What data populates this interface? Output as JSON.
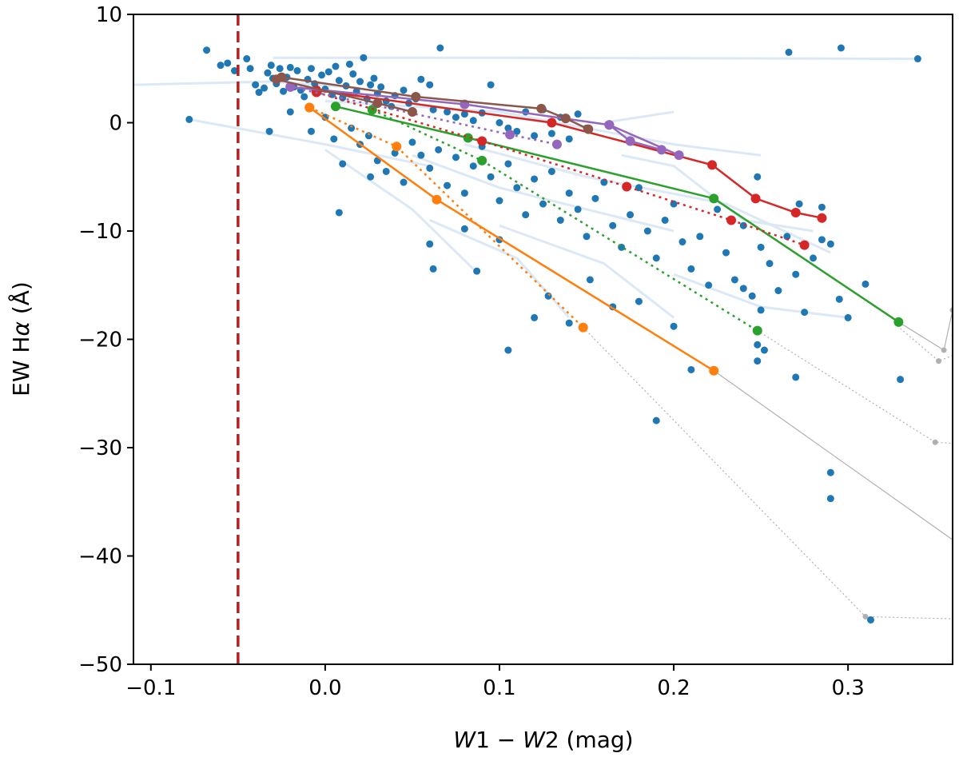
{
  "chart_data": {
    "type": "scatter",
    "xlabel_italic_a": "W",
    "xlabel_part_1": "1 − ",
    "xlabel_italic_b": "W",
    "xlabel_part_2": "2 (mag)",
    "ylabel_part_1": "EW H",
    "ylabel_greek": "α",
    "ylabel_part_2": " (Å)",
    "xlim": [
      -0.11,
      0.36
    ],
    "ylim": [
      -50,
      10
    ],
    "x_ticks": [
      -0.1,
      0.0,
      0.1,
      0.2,
      0.3
    ],
    "x_tick_labels": [
      "−0.1",
      "0.0",
      "0.1",
      "0.2",
      "0.3"
    ],
    "y_ticks": [
      10,
      0,
      -10,
      -20,
      -30,
      -40,
      -50
    ],
    "y_tick_labels": [
      "10",
      "0",
      "−10",
      "−20",
      "−30",
      "−40",
      "−50"
    ],
    "grid": false,
    "reference_line": {
      "x": -0.05,
      "color": "#b22222",
      "style": "dashed"
    },
    "colors": {
      "scatter": "#1f77b4",
      "faint_tracks": "#dce9f5",
      "gray": "#b0b0b0",
      "orange": "#ff7f0e",
      "green": "#2ca02c",
      "red": "#d62728",
      "purple": "#9467bd",
      "brown": "#8c564b"
    },
    "scatter_points": [
      [
        -0.068,
        6.7
      ],
      [
        -0.06,
        5.3
      ],
      [
        -0.056,
        5.5
      ],
      [
        -0.052,
        4.8
      ],
      [
        -0.045,
        5.9
      ],
      [
        -0.043,
        5.0
      ],
      [
        -0.04,
        3.5
      ],
      [
        -0.038,
        2.8
      ],
      [
        -0.035,
        3.2
      ],
      [
        -0.033,
        4.6
      ],
      [
        -0.031,
        5.3
      ],
      [
        -0.03,
        4.1
      ],
      [
        -0.028,
        3.6
      ],
      [
        -0.026,
        5.0
      ],
      [
        -0.024,
        2.9
      ],
      [
        -0.022,
        4.2
      ],
      [
        -0.02,
        5.1
      ],
      [
        -0.018,
        3.3
      ],
      [
        -0.016,
        4.8
      ],
      [
        -0.014,
        3.0
      ],
      [
        -0.012,
        2.4
      ],
      [
        -0.01,
        4.0
      ],
      [
        -0.008,
        5.0
      ],
      [
        -0.006,
        3.6
      ],
      [
        -0.004,
        2.8
      ],
      [
        -0.002,
        4.4
      ],
      [
        0.0,
        3.1
      ],
      [
        0.002,
        4.7
      ],
      [
        0.004,
        2.6
      ],
      [
        0.006,
        5.2
      ],
      [
        0.008,
        3.9
      ],
      [
        0.01,
        2.3
      ],
      [
        0.012,
        3.4
      ],
      [
        0.014,
        5.4
      ],
      [
        0.016,
        4.5
      ],
      [
        0.018,
        2.9
      ],
      [
        0.02,
        3.8
      ],
      [
        0.022,
        6.0
      ],
      [
        0.024,
        2.2
      ],
      [
        0.026,
        3.5
      ],
      [
        0.028,
        4.1
      ],
      [
        0.03,
        2.7
      ],
      [
        0.032,
        3.3
      ],
      [
        0.035,
        2.0
      ],
      [
        0.038,
        1.5
      ],
      [
        0.04,
        2.5
      ],
      [
        0.045,
        3.0
      ],
      [
        0.048,
        1.8
      ],
      [
        0.052,
        2.2
      ],
      [
        0.055,
        4.0
      ],
      [
        0.06,
        3.5
      ],
      [
        0.062,
        1.2
      ],
      [
        0.066,
        6.9
      ],
      [
        0.07,
        1.0
      ],
      [
        0.075,
        0.5
      ],
      [
        0.08,
        0.8
      ],
      [
        0.085,
        0.2
      ],
      [
        0.09,
        0.9
      ],
      [
        0.095,
        3.5
      ],
      [
        0.1,
        0.0
      ],
      [
        0.105,
        -0.5
      ],
      [
        0.11,
        -0.8
      ],
      [
        0.115,
        1.0
      ],
      [
        0.12,
        -1.2
      ],
      [
        0.125,
        1.2
      ],
      [
        0.13,
        -1.0
      ],
      [
        0.135,
        0.5
      ],
      [
        0.14,
        -1.5
      ],
      [
        0.145,
        0.8
      ],
      [
        0.15,
        -0.5
      ],
      [
        -0.078,
        0.3
      ],
      [
        -0.032,
        -0.8
      ],
      [
        -0.02,
        1.0
      ],
      [
        -0.008,
        -0.8
      ],
      [
        0.0,
        0.5
      ],
      [
        0.005,
        -1.5
      ],
      [
        0.01,
        -3.8
      ],
      [
        0.015,
        -0.5
      ],
      [
        0.02,
        -2.0
      ],
      [
        0.025,
        -1.2
      ],
      [
        0.03,
        -3.5
      ],
      [
        0.035,
        -4.5
      ],
      [
        0.04,
        -2.8
      ],
      [
        0.045,
        -5.5
      ],
      [
        0.05,
        -1.8
      ],
      [
        0.055,
        -3.0
      ],
      [
        0.06,
        -4.2
      ],
      [
        0.065,
        -2.5
      ],
      [
        0.07,
        -5.8
      ],
      [
        0.075,
        -3.2
      ],
      [
        0.08,
        -6.5
      ],
      [
        0.085,
        -4.0
      ],
      [
        0.09,
        -2.2
      ],
      [
        0.095,
        -5.0
      ],
      [
        0.1,
        -7.2
      ],
      [
        0.105,
        -3.8
      ],
      [
        0.11,
        -6.0
      ],
      [
        0.115,
        -8.5
      ],
      [
        0.12,
        -5.2
      ],
      [
        0.125,
        -7.5
      ],
      [
        0.13,
        -4.5
      ],
      [
        0.135,
        -9.0
      ],
      [
        0.14,
        -6.5
      ],
      [
        0.145,
        -8.0
      ],
      [
        0.15,
        -10.5
      ],
      [
        0.155,
        -7.0
      ],
      [
        0.16,
        -5.5
      ],
      [
        0.165,
        -9.5
      ],
      [
        0.17,
        -11.5
      ],
      [
        0.175,
        -8.5
      ],
      [
        0.18,
        -6.0
      ],
      [
        0.185,
        -10.0
      ],
      [
        0.19,
        -12.5
      ],
      [
        0.195,
        -9.0
      ],
      [
        0.2,
        -7.5
      ],
      [
        0.205,
        -11.0
      ],
      [
        0.21,
        -13.5
      ],
      [
        0.215,
        -10.5
      ],
      [
        0.22,
        -15.0
      ],
      [
        0.225,
        -8.0
      ],
      [
        0.23,
        -12.0
      ],
      [
        0.235,
        -14.5
      ],
      [
        0.24,
        -9.5
      ],
      [
        0.245,
        -16.0
      ],
      [
        0.25,
        -11.5
      ],
      [
        0.255,
        -13.0
      ],
      [
        0.26,
        -15.5
      ],
      [
        0.265,
        -10.5
      ],
      [
        0.27,
        -14.0
      ],
      [
        0.275,
        -17.5
      ],
      [
        0.28,
        -12.5
      ],
      [
        0.285,
        -10.8
      ],
      [
        0.29,
        -11.2
      ],
      [
        0.295,
        -16.3
      ],
      [
        0.3,
        -18.0
      ],
      [
        0.008,
        -8.3
      ],
      [
        0.026,
        -5.0
      ],
      [
        0.06,
        -11.2
      ],
      [
        0.062,
        -13.5
      ],
      [
        0.08,
        -9.8
      ],
      [
        0.087,
        -13.7
      ],
      [
        0.1,
        -10.8
      ],
      [
        0.105,
        -21.0
      ],
      [
        0.12,
        -18.0
      ],
      [
        0.128,
        -16.0
      ],
      [
        0.14,
        -18.5
      ],
      [
        0.152,
        -14.5
      ],
      [
        0.165,
        -17.0
      ],
      [
        0.18,
        -16.5
      ],
      [
        0.19,
        -27.5
      ],
      [
        0.2,
        -18.8
      ],
      [
        0.21,
        -22.8
      ],
      [
        0.24,
        -15.3
      ],
      [
        0.248,
        -20.5
      ],
      [
        0.252,
        -21.0
      ],
      [
        0.248,
        -22.0
      ],
      [
        0.25,
        -17.3
      ],
      [
        0.27,
        -23.5
      ],
      [
        0.29,
        -32.3
      ],
      [
        0.29,
        -34.7
      ],
      [
        0.313,
        -45.9
      ],
      [
        0.33,
        -23.7
      ],
      [
        0.31,
        -14.9
      ],
      [
        0.296,
        6.9
      ],
      [
        0.266,
        6.5
      ],
      [
        0.34,
        5.9
      ],
      [
        0.285,
        -7.8
      ],
      [
        0.272,
        -7.5
      ],
      [
        0.248,
        -5.0
      ]
    ],
    "faint_tracks": [
      [
        [
          -0.11,
          3.5
        ],
        [
          -0.03,
          3.8
        ],
        [
          0.02,
          3.2
        ]
      ],
      [
        [
          -0.078,
          0.3
        ],
        [
          0.0,
          -2.0
        ],
        [
          0.06,
          -4.0
        ]
      ],
      [
        [
          -0.03,
          6.0
        ],
        [
          0.1,
          6.0
        ],
        [
          0.34,
          5.9
        ]
      ],
      [
        [
          0.0,
          2.0
        ],
        [
          0.1,
          1.0
        ],
        [
          0.2,
          -2.0
        ],
        [
          0.25,
          -3.0
        ]
      ],
      [
        [
          0.05,
          -3.0
        ],
        [
          0.1,
          -6.0
        ],
        [
          0.15,
          -8.0
        ],
        [
          0.2,
          -10.0
        ]
      ],
      [
        [
          0.06,
          -9.0
        ],
        [
          0.11,
          -12.5
        ],
        [
          0.14,
          -18.0
        ]
      ],
      [
        [
          0.17,
          -3.0
        ],
        [
          0.2,
          -4.0
        ],
        [
          0.24,
          -9.0
        ],
        [
          0.28,
          -10.0
        ]
      ],
      [
        [
          0.08,
          -2.0
        ],
        [
          0.15,
          -5.0
        ],
        [
          0.23,
          -7.5
        ],
        [
          0.29,
          -12.0
        ]
      ],
      [
        [
          0.1,
          -9.5
        ],
        [
          0.16,
          -13.0
        ],
        [
          0.2,
          -18.0
        ]
      ],
      [
        [
          0.2,
          -14.0
        ],
        [
          0.25,
          -17.0
        ],
        [
          0.3,
          -18.0
        ]
      ],
      [
        [
          0.0,
          -2.5
        ],
        [
          0.05,
          -8.0
        ],
        [
          0.085,
          -13.5
        ]
      ],
      [
        [
          0.16,
          0.0
        ],
        [
          0.2,
          1.0
        ]
      ]
    ],
    "gray_tracks": [
      {
        "style": "solid",
        "points": [
          [
            0.223,
            -22.9
          ],
          [
            0.36,
            -38.5
          ]
        ]
      },
      {
        "style": "dotted",
        "points": [
          [
            0.148,
            -18.9
          ],
          [
            0.31,
            -45.6
          ],
          [
            0.36,
            -45.8
          ]
        ]
      },
      {
        "style": "dotted",
        "points": [
          [
            0.248,
            -19.2
          ],
          [
            0.35,
            -29.5
          ],
          [
            0.36,
            -29.6
          ]
        ]
      },
      {
        "style": "solid",
        "points": [
          [
            0.329,
            -18.4
          ],
          [
            0.355,
            -21.0
          ],
          [
            0.36,
            -17.3
          ]
        ]
      },
      {
        "style": "dotted",
        "points": [
          [
            0.33,
            -19.0
          ],
          [
            0.352,
            -22.0
          ],
          [
            0.36,
            -21.5
          ]
        ]
      }
    ],
    "gray_markers": [
      [
        0.31,
        -45.6
      ],
      [
        0.35,
        -29.5
      ],
      [
        0.355,
        -21.0
      ],
      [
        0.352,
        -22.0
      ],
      [
        0.36,
        -17.3
      ]
    ],
    "series": [
      {
        "color": "orange",
        "style": "solid",
        "points": [
          [
            -0.009,
            1.4
          ],
          [
            0.064,
            -7.1
          ],
          [
            0.223,
            -22.9
          ]
        ]
      },
      {
        "color": "orange",
        "style": "dotted",
        "points": [
          [
            -0.009,
            1.4
          ],
          [
            0.041,
            -2.2
          ],
          [
            0.148,
            -18.9
          ]
        ]
      },
      {
        "color": "green",
        "style": "solid",
        "points": [
          [
            0.006,
            1.5
          ],
          [
            0.082,
            -1.4
          ],
          [
            0.223,
            -7.0
          ],
          [
            0.329,
            -18.4
          ]
        ]
      },
      {
        "color": "green",
        "style": "dotted",
        "points": [
          [
            0.027,
            1.2
          ],
          [
            0.09,
            -3.5
          ],
          [
            0.248,
            -19.2
          ]
        ]
      },
      {
        "color": "red",
        "style": "solid",
        "points": [
          [
            -0.005,
            3.0
          ],
          [
            0.13,
            0.0
          ],
          [
            0.222,
            -3.9
          ],
          [
            0.247,
            -7.0
          ],
          [
            0.27,
            -8.3
          ],
          [
            0.285,
            -8.8
          ]
        ]
      },
      {
        "color": "red",
        "style": "dotted",
        "points": [
          [
            -0.005,
            2.8
          ],
          [
            0.09,
            -1.7
          ],
          [
            0.173,
            -5.9
          ],
          [
            0.233,
            -9.0
          ],
          [
            0.275,
            -11.3
          ]
        ]
      },
      {
        "color": "purple",
        "style": "solid",
        "points": [
          [
            -0.02,
            3.3
          ],
          [
            0.08,
            1.7
          ],
          [
            0.163,
            -0.2
          ],
          [
            0.203,
            -3.0
          ]
        ]
      },
      {
        "color": "purple",
        "style": "dotted",
        "points": [
          [
            -0.02,
            3.3
          ],
          [
            0.106,
            -1.1
          ],
          [
            0.133,
            -2.0
          ]
        ]
      },
      {
        "color": "purple",
        "style": "solid",
        "points": [
          [
            0.163,
            -0.2
          ],
          [
            0.175,
            -1.7
          ],
          [
            0.193,
            -2.5
          ]
        ]
      },
      {
        "color": "brown",
        "style": "solid",
        "points": [
          [
            -0.025,
            4.2
          ],
          [
            0.052,
            2.4
          ],
          [
            0.124,
            1.3
          ],
          [
            0.138,
            0.4
          ],
          [
            0.151,
            -0.6
          ]
        ]
      },
      {
        "color": "brown",
        "style": "solid",
        "points": [
          [
            -0.028,
            4.0
          ],
          [
            0.03,
            1.8
          ],
          [
            0.05,
            1.0
          ]
        ]
      }
    ]
  }
}
